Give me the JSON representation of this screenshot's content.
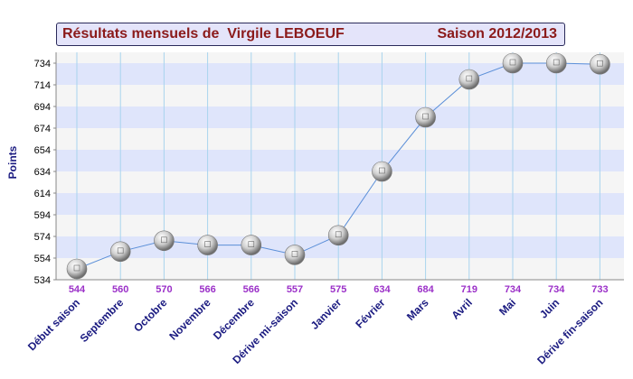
{
  "chart_data": {
    "type": "line",
    "title": "Résultats mensuels de  Virgile LEBOEUF",
    "subtitle": "Saison 2012/2013",
    "ylabel": "Points",
    "xlabel": "",
    "ylim": [
      534,
      744
    ],
    "yticks": [
      534,
      554,
      574,
      594,
      614,
      634,
      654,
      674,
      694,
      714,
      734
    ],
    "categories": [
      "Début saison",
      "Septembre",
      "Octobre",
      "Novembre",
      "Décembre",
      "Dérive mi-saison",
      "Janvier",
      "Février",
      "Mars",
      "Avril",
      "Mai",
      "Juin",
      "Dérive fin-saison"
    ],
    "values": [
      544,
      560,
      570,
      566,
      566,
      557,
      575,
      634,
      684,
      719,
      734,
      734,
      733
    ],
    "value_labels": [
      "544",
      "560",
      "570",
      "566",
      "566",
      "557",
      "575",
      "634",
      "684",
      "719",
      "734",
      "734",
      "733"
    ],
    "grid": true,
    "colors": {
      "band": "#dfe5fb",
      "band_alt": "#f5f5f5",
      "line": "#5b8fd8",
      "vgrid": "#a8d4ee",
      "value_label": "#9b30c8",
      "category_label": "#1a1a80",
      "axis_text": "#000000",
      "title_text": "#8b1a1a",
      "title_bg": "#e4e4fa"
    }
  }
}
